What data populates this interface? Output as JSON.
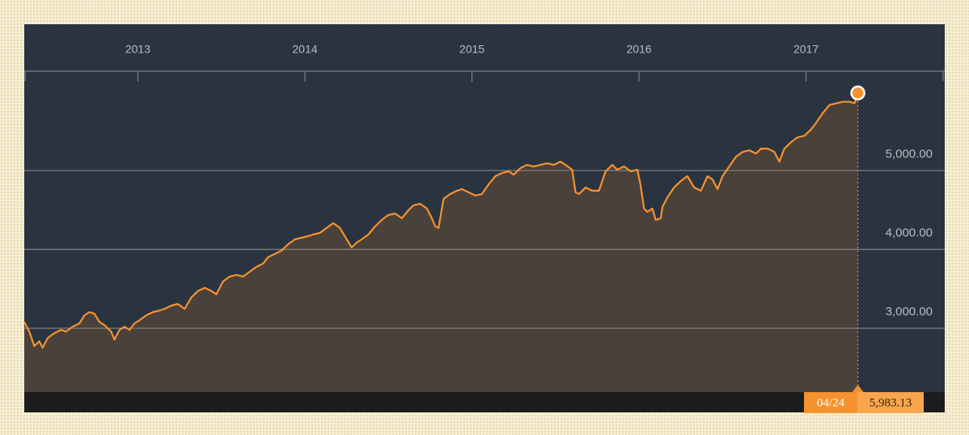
{
  "chart_data": {
    "type": "area",
    "x": [
      2012.32,
      2012.35,
      2012.38,
      2012.41,
      2012.43,
      2012.46,
      2012.5,
      2012.54,
      2012.57,
      2012.61,
      2012.65,
      2012.68,
      2012.71,
      2012.74,
      2012.77,
      2012.8,
      2012.84,
      2012.86,
      2012.89,
      2012.92,
      2012.95,
      2012.98,
      2013.01,
      2013.05,
      2013.09,
      2013.13,
      2013.16,
      2013.2,
      2013.24,
      2013.28,
      2013.32,
      2013.36,
      2013.4,
      2013.44,
      2013.47,
      2013.51,
      2013.55,
      2013.59,
      2013.63,
      2013.67,
      2013.71,
      2013.75,
      2013.78,
      2013.82,
      2013.86,
      2013.9,
      2013.94,
      2013.98,
      2014.02,
      2014.05,
      2014.09,
      2014.13,
      2014.17,
      2014.21,
      2014.25,
      2014.28,
      2014.31,
      2014.34,
      2014.38,
      2014.42,
      2014.46,
      2014.5,
      2014.54,
      2014.58,
      2014.62,
      2014.65,
      2014.69,
      2014.73,
      2014.76,
      2014.78,
      2014.8,
      2014.83,
      2014.87,
      2014.91,
      2014.94,
      2014.98,
      2015.02,
      2015.06,
      2015.1,
      2015.14,
      2015.18,
      2015.22,
      2015.25,
      2015.29,
      2015.33,
      2015.37,
      2015.41,
      2015.45,
      2015.49,
      2015.53,
      2015.56,
      2015.6,
      2015.62,
      2015.64,
      2015.68,
      2015.72,
      2015.76,
      2015.8,
      2015.84,
      2015.87,
      2015.91,
      2015.95,
      2015.99,
      2016.01,
      2016.03,
      2016.05,
      2016.08,
      2016.1,
      2016.13,
      2016.14,
      2016.17,
      2016.21,
      2016.25,
      2016.29,
      2016.33,
      2016.37,
      2016.41,
      2016.44,
      2016.47,
      2016.5,
      2016.54,
      2016.58,
      2016.62,
      2016.66,
      2016.7,
      2016.73,
      2016.77,
      2016.81,
      2016.84,
      2016.87,
      2016.91,
      2016.95,
      2016.99,
      2017.03,
      2017.06,
      2017.1,
      2017.14,
      2017.18,
      2017.22,
      2017.26,
      2017.29,
      2017.31
    ],
    "series": [
      {
        "color": "#f5922f",
        "values": [
          3081,
          2958,
          2774,
          2835,
          2753,
          2876,
          2938,
          2979,
          2958,
          3020,
          3061,
          3164,
          3205,
          3184,
          3081,
          3040,
          2958,
          2856,
          2979,
          3020,
          2979,
          3061,
          3102,
          3164,
          3205,
          3225,
          3246,
          3287,
          3307,
          3246,
          3390,
          3472,
          3512,
          3472,
          3430,
          3594,
          3656,
          3676,
          3656,
          3718,
          3779,
          3820,
          3902,
          3943,
          3984,
          4066,
          4128,
          4148,
          4169,
          4189,
          4210,
          4272,
          4333,
          4272,
          4128,
          4025,
          4087,
          4128,
          4189,
          4292,
          4374,
          4436,
          4456,
          4395,
          4497,
          4559,
          4579,
          4518,
          4395,
          4292,
          4272,
          4641,
          4703,
          4744,
          4764,
          4723,
          4682,
          4703,
          4826,
          4928,
          4969,
          4990,
          4949,
          5031,
          5072,
          5051,
          5072,
          5092,
          5072,
          5113,
          5072,
          5010,
          4723,
          4703,
          4785,
          4744,
          4744,
          4990,
          5072,
          5010,
          5051,
          4990,
          5010,
          4805,
          4518,
          4477,
          4518,
          4374,
          4395,
          4538,
          4661,
          4785,
          4867,
          4928,
          4785,
          4744,
          4928,
          4887,
          4764,
          4928,
          5051,
          5174,
          5236,
          5256,
          5215,
          5277,
          5277,
          5236,
          5113,
          5277,
          5359,
          5421,
          5441,
          5523,
          5605,
          5728,
          5831,
          5852,
          5872,
          5872,
          5852,
          5983.13
        ]
      }
    ],
    "xlim": [
      2012.32,
      2017.83
    ],
    "xticks": [
      2013,
      2014,
      2015,
      2016,
      2017
    ],
    "ylim": [
      2190,
      6260
    ],
    "yticks": [
      {
        "value": 3000,
        "label": "3,000.00"
      },
      {
        "value": 4000,
        "label": "4,000.00"
      },
      {
        "value": 5000,
        "label": "5,000.00"
      }
    ],
    "grid": true,
    "last_point": {
      "date": "04/24",
      "value": 5983.13,
      "value_label": "5,983.13"
    }
  }
}
